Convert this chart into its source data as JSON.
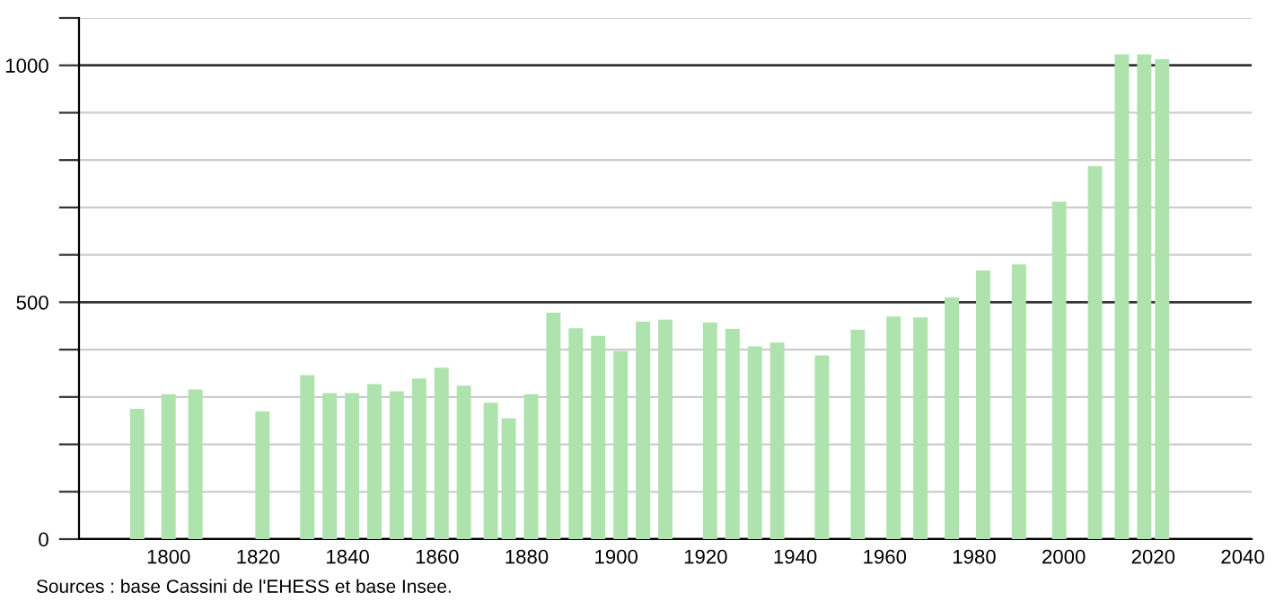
{
  "chart_data": {
    "type": "bar",
    "x": [
      1793,
      1800,
      1806,
      1821,
      1831,
      1836,
      1841,
      1846,
      1851,
      1856,
      1861,
      1866,
      1872,
      1876,
      1881,
      1886,
      1891,
      1896,
      1901,
      1906,
      1911,
      1921,
      1926,
      1931,
      1936,
      1946,
      1954,
      1962,
      1968,
      1975,
      1982,
      1990,
      1999,
      2007,
      2013,
      2018,
      2022
    ],
    "values": [
      275,
      306,
      316,
      270,
      346,
      308,
      308,
      327,
      312,
      339,
      362,
      324,
      288,
      255,
      306,
      478,
      445,
      429,
      397,
      459,
      463,
      457,
      444,
      407,
      415,
      388,
      442,
      470,
      468,
      510,
      567,
      580,
      712,
      787,
      1023,
      1023,
      1013
    ],
    "color": "#aee3ae",
    "xlim": [
      1780,
      2042
    ],
    "xticks": [
      1800,
      1820,
      1840,
      1860,
      1880,
      1900,
      1920,
      1940,
      1960,
      1980,
      2000,
      2020,
      2040
    ],
    "ylim": [
      0,
      1100
    ],
    "yticks": [
      0,
      {
        "value": 100,
        "label": null
      },
      {
        "value": 200,
        "label": null
      },
      {
        "value": 300,
        "label": null
      },
      {
        "value": 400,
        "label": null
      },
      500,
      {
        "value": 600,
        "label": null
      },
      {
        "value": 700,
        "label": null
      },
      {
        "value": 800,
        "label": null
      },
      {
        "value": 900,
        "label": null
      },
      1000,
      {
        "value": 1100,
        "label": null
      }
    ],
    "grid": "y",
    "annotations": [
      "Sources : base Cassini de l'EHESS et base Insee."
    ]
  }
}
